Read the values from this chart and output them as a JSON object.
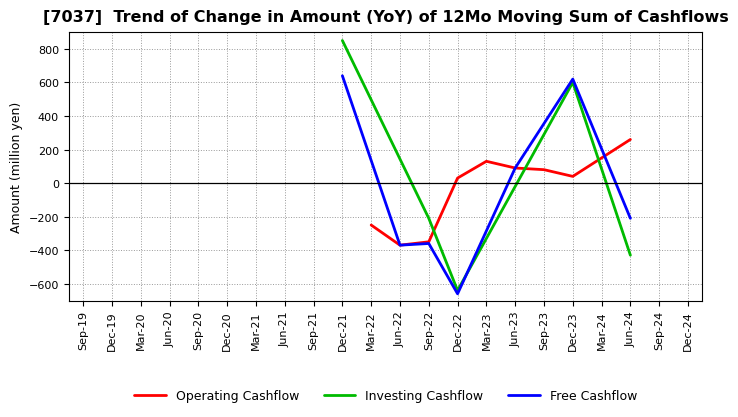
{
  "title": "[7037]  Trend of Change in Amount (YoY) of 12Mo Moving Sum of Cashflows",
  "ylabel": "Amount (million yen)",
  "x_labels": [
    "Sep-19",
    "Dec-19",
    "Mar-20",
    "Jun-20",
    "Sep-20",
    "Dec-20",
    "Mar-21",
    "Jun-21",
    "Sep-21",
    "Dec-21",
    "Mar-22",
    "Jun-22",
    "Sep-22",
    "Dec-22",
    "Mar-23",
    "Jun-23",
    "Sep-23",
    "Dec-23",
    "Mar-24",
    "Jun-24",
    "Sep-24",
    "Dec-24"
  ],
  "operating": [
    null,
    null,
    null,
    null,
    null,
    null,
    null,
    null,
    null,
    null,
    -250,
    -370,
    -350,
    30,
    130,
    90,
    80,
    40,
    150,
    260,
    null,
    null
  ],
  "investing": [
    null,
    null,
    null,
    null,
    null,
    null,
    null,
    null,
    null,
    850,
    null,
    null,
    -210,
    -640,
    null,
    null,
    null,
    600,
    null,
    -430,
    null,
    null
  ],
  "free": [
    null,
    null,
    null,
    null,
    null,
    null,
    null,
    null,
    null,
    640,
    null,
    -370,
    -360,
    -660,
    null,
    90,
    null,
    620,
    null,
    -210,
    null,
    null
  ],
  "ylim": [
    -700,
    900
  ],
  "yticks": [
    -600,
    -400,
    -200,
    0,
    200,
    400,
    600,
    800
  ],
  "operating_color": "#ff0000",
  "investing_color": "#00bb00",
  "free_color": "#0000ff",
  "bg_color": "#ffffff",
  "grid_color": "#999999",
  "title_fontsize": 11.5,
  "axis_fontsize": 9,
  "tick_fontsize": 8,
  "legend_fontsize": 9,
  "linewidth": 2.0
}
